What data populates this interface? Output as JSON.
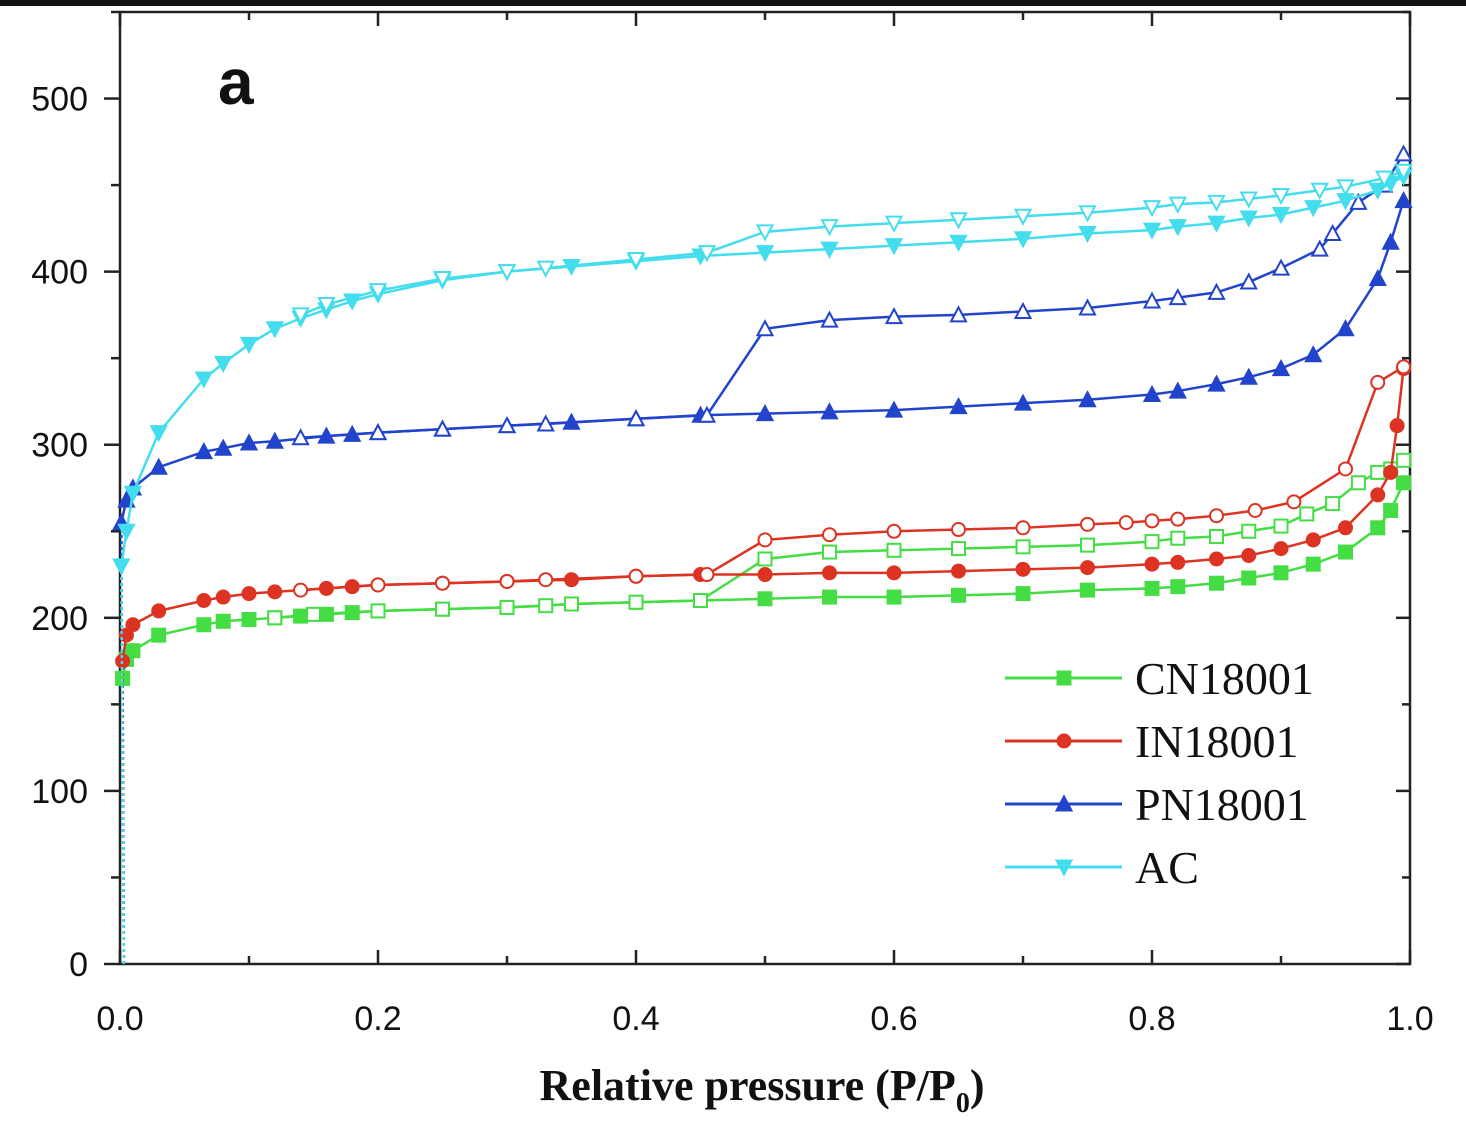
{
  "chart_data": {
    "type": "line",
    "panel_label": "a",
    "xlabel": {
      "main": "Relative pressure (P/P",
      "subscript": "0",
      "close": ")"
    },
    "ylabel": "",
    "xlim": [
      0.0,
      1.0
    ],
    "ylim": [
      0,
      500
    ],
    "x_ticks": [
      "0.0",
      "0.2",
      "0.4",
      "0.6",
      "0.8",
      "1.0"
    ],
    "y_ticks": [
      "0",
      "100",
      "200",
      "300",
      "400",
      "500"
    ],
    "legend_placement": "bottom-right",
    "series": [
      {
        "name": "CN18001",
        "color": "#44dd44",
        "marker": "square",
        "adsorption": [
          [
            0.002,
            165
          ],
          [
            0.005,
            176
          ],
          [
            0.01,
            181
          ],
          [
            0.03,
            190
          ],
          [
            0.065,
            196
          ],
          [
            0.08,
            198
          ],
          [
            0.1,
            199
          ],
          [
            0.12,
            200
          ],
          [
            0.14,
            201
          ],
          [
            0.16,
            202
          ],
          [
            0.18,
            203
          ],
          [
            0.2,
            204
          ],
          [
            0.25,
            205
          ],
          [
            0.3,
            206
          ],
          [
            0.35,
            208
          ],
          [
            0.4,
            209
          ],
          [
            0.45,
            210
          ],
          [
            0.5,
            211
          ],
          [
            0.55,
            212
          ],
          [
            0.6,
            212
          ],
          [
            0.65,
            213
          ],
          [
            0.7,
            214
          ],
          [
            0.75,
            216
          ],
          [
            0.8,
            217
          ],
          [
            0.82,
            218
          ],
          [
            0.85,
            220
          ],
          [
            0.875,
            223
          ],
          [
            0.9,
            226
          ],
          [
            0.925,
            231
          ],
          [
            0.95,
            238
          ],
          [
            0.975,
            252
          ],
          [
            0.985,
            262
          ],
          [
            0.995,
            278
          ]
        ],
        "desorption": [
          [
            0.995,
            291
          ],
          [
            0.985,
            286
          ],
          [
            0.975,
            284
          ],
          [
            0.96,
            278
          ],
          [
            0.94,
            266
          ],
          [
            0.92,
            260
          ],
          [
            0.9,
            253
          ],
          [
            0.875,
            250
          ],
          [
            0.85,
            247
          ],
          [
            0.82,
            246
          ],
          [
            0.8,
            244
          ],
          [
            0.75,
            242
          ],
          [
            0.7,
            241
          ],
          [
            0.65,
            240
          ],
          [
            0.6,
            239
          ],
          [
            0.55,
            238
          ],
          [
            0.5,
            234
          ],
          [
            0.45,
            210
          ],
          [
            0.4,
            209
          ],
          [
            0.35,
            208
          ],
          [
            0.33,
            207
          ],
          [
            0.3,
            206
          ],
          [
            0.25,
            205
          ],
          [
            0.2,
            204
          ],
          [
            0.15,
            202
          ],
          [
            0.12,
            200
          ]
        ]
      },
      {
        "name": "IN18001",
        "color": "#dd3322",
        "marker": "circle",
        "adsorption": [
          [
            0.002,
            175
          ],
          [
            0.005,
            190
          ],
          [
            0.01,
            196
          ],
          [
            0.03,
            204
          ],
          [
            0.065,
            210
          ],
          [
            0.08,
            212
          ],
          [
            0.1,
            214
          ],
          [
            0.12,
            215
          ],
          [
            0.16,
            217
          ],
          [
            0.18,
            218
          ],
          [
            0.2,
            219
          ],
          [
            0.25,
            220
          ],
          [
            0.3,
            221
          ],
          [
            0.35,
            222
          ],
          [
            0.4,
            224
          ],
          [
            0.45,
            225
          ],
          [
            0.5,
            225
          ],
          [
            0.55,
            226
          ],
          [
            0.6,
            226
          ],
          [
            0.65,
            227
          ],
          [
            0.7,
            228
          ],
          [
            0.75,
            229
          ],
          [
            0.8,
            231
          ],
          [
            0.82,
            232
          ],
          [
            0.85,
            234
          ],
          [
            0.875,
            236
          ],
          [
            0.9,
            240
          ],
          [
            0.925,
            245
          ],
          [
            0.95,
            252
          ],
          [
            0.975,
            271
          ],
          [
            0.985,
            284
          ],
          [
            0.99,
            311
          ],
          [
            0.995,
            344
          ]
        ],
        "desorption": [
          [
            0.995,
            345
          ],
          [
            0.975,
            336
          ],
          [
            0.95,
            286
          ],
          [
            0.91,
            267
          ],
          [
            0.88,
            262
          ],
          [
            0.85,
            259
          ],
          [
            0.82,
            257
          ],
          [
            0.8,
            256
          ],
          [
            0.78,
            255
          ],
          [
            0.75,
            254
          ],
          [
            0.7,
            252
          ],
          [
            0.65,
            251
          ],
          [
            0.6,
            250
          ],
          [
            0.55,
            248
          ],
          [
            0.5,
            245
          ],
          [
            0.455,
            225
          ],
          [
            0.4,
            224
          ],
          [
            0.33,
            222
          ],
          [
            0.3,
            221
          ],
          [
            0.25,
            220
          ],
          [
            0.2,
            219
          ],
          [
            0.14,
            216
          ]
        ]
      },
      {
        "name": "PN18001",
        "color": "#2244cc",
        "marker": "triangle-up",
        "adsorption": [
          [
            0.001,
            255
          ],
          [
            0.005,
            268
          ],
          [
            0.01,
            275
          ],
          [
            0.03,
            287
          ],
          [
            0.065,
            296
          ],
          [
            0.08,
            298
          ],
          [
            0.1,
            301
          ],
          [
            0.12,
            302
          ],
          [
            0.16,
            305
          ],
          [
            0.18,
            306
          ],
          [
            0.2,
            307
          ],
          [
            0.25,
            309
          ],
          [
            0.3,
            311
          ],
          [
            0.35,
            313
          ],
          [
            0.4,
            315
          ],
          [
            0.45,
            317
          ],
          [
            0.5,
            318
          ],
          [
            0.55,
            319
          ],
          [
            0.6,
            320
          ],
          [
            0.65,
            322
          ],
          [
            0.7,
            324
          ],
          [
            0.75,
            326
          ],
          [
            0.8,
            329
          ],
          [
            0.82,
            331
          ],
          [
            0.85,
            335
          ],
          [
            0.875,
            339
          ],
          [
            0.9,
            344
          ],
          [
            0.925,
            352
          ],
          [
            0.95,
            367
          ],
          [
            0.975,
            396
          ],
          [
            0.985,
            417
          ],
          [
            0.995,
            441
          ]
        ],
        "desorption": [
          [
            0.995,
            468
          ],
          [
            0.98,
            450
          ],
          [
            0.96,
            440
          ],
          [
            0.94,
            422
          ],
          [
            0.93,
            413
          ],
          [
            0.9,
            402
          ],
          [
            0.875,
            394
          ],
          [
            0.85,
            388
          ],
          [
            0.82,
            385
          ],
          [
            0.8,
            383
          ],
          [
            0.75,
            379
          ],
          [
            0.7,
            377
          ],
          [
            0.65,
            375
          ],
          [
            0.6,
            374
          ],
          [
            0.55,
            372
          ],
          [
            0.5,
            367
          ],
          [
            0.455,
            317
          ],
          [
            0.4,
            315
          ],
          [
            0.33,
            312
          ],
          [
            0.3,
            311
          ],
          [
            0.25,
            309
          ],
          [
            0.2,
            307
          ],
          [
            0.14,
            304
          ]
        ]
      },
      {
        "name": "AC",
        "color": "#44ddee",
        "marker": "triangle-down",
        "adsorption": [
          [
            0.001,
            230
          ],
          [
            0.005,
            250
          ],
          [
            0.01,
            272
          ],
          [
            0.03,
            307
          ],
          [
            0.065,
            338
          ],
          [
            0.08,
            347
          ],
          [
            0.1,
            358
          ],
          [
            0.12,
            367
          ],
          [
            0.14,
            373
          ],
          [
            0.16,
            378
          ],
          [
            0.18,
            383
          ],
          [
            0.2,
            387
          ],
          [
            0.25,
            395
          ],
          [
            0.3,
            400
          ],
          [
            0.35,
            403
          ],
          [
            0.4,
            406
          ],
          [
            0.45,
            409
          ],
          [
            0.5,
            411
          ],
          [
            0.55,
            413
          ],
          [
            0.6,
            415
          ],
          [
            0.65,
            417
          ],
          [
            0.7,
            419
          ],
          [
            0.75,
            422
          ],
          [
            0.8,
            424
          ],
          [
            0.82,
            426
          ],
          [
            0.85,
            428
          ],
          [
            0.875,
            431
          ],
          [
            0.9,
            433
          ],
          [
            0.925,
            437
          ],
          [
            0.95,
            441
          ],
          [
            0.975,
            447
          ],
          [
            0.985,
            451
          ],
          [
            0.995,
            455
          ]
        ],
        "desorption": [
          [
            0.995,
            458
          ],
          [
            0.98,
            454
          ],
          [
            0.95,
            449
          ],
          [
            0.93,
            447
          ],
          [
            0.9,
            444
          ],
          [
            0.875,
            442
          ],
          [
            0.85,
            440
          ],
          [
            0.82,
            439
          ],
          [
            0.8,
            437
          ],
          [
            0.75,
            434
          ],
          [
            0.7,
            432
          ],
          [
            0.65,
            430
          ],
          [
            0.6,
            428
          ],
          [
            0.55,
            426
          ],
          [
            0.5,
            423
          ],
          [
            0.455,
            411
          ],
          [
            0.4,
            407
          ],
          [
            0.33,
            402
          ],
          [
            0.3,
            400
          ],
          [
            0.25,
            396
          ],
          [
            0.2,
            389
          ],
          [
            0.16,
            381
          ],
          [
            0.14,
            375
          ]
        ]
      }
    ]
  }
}
